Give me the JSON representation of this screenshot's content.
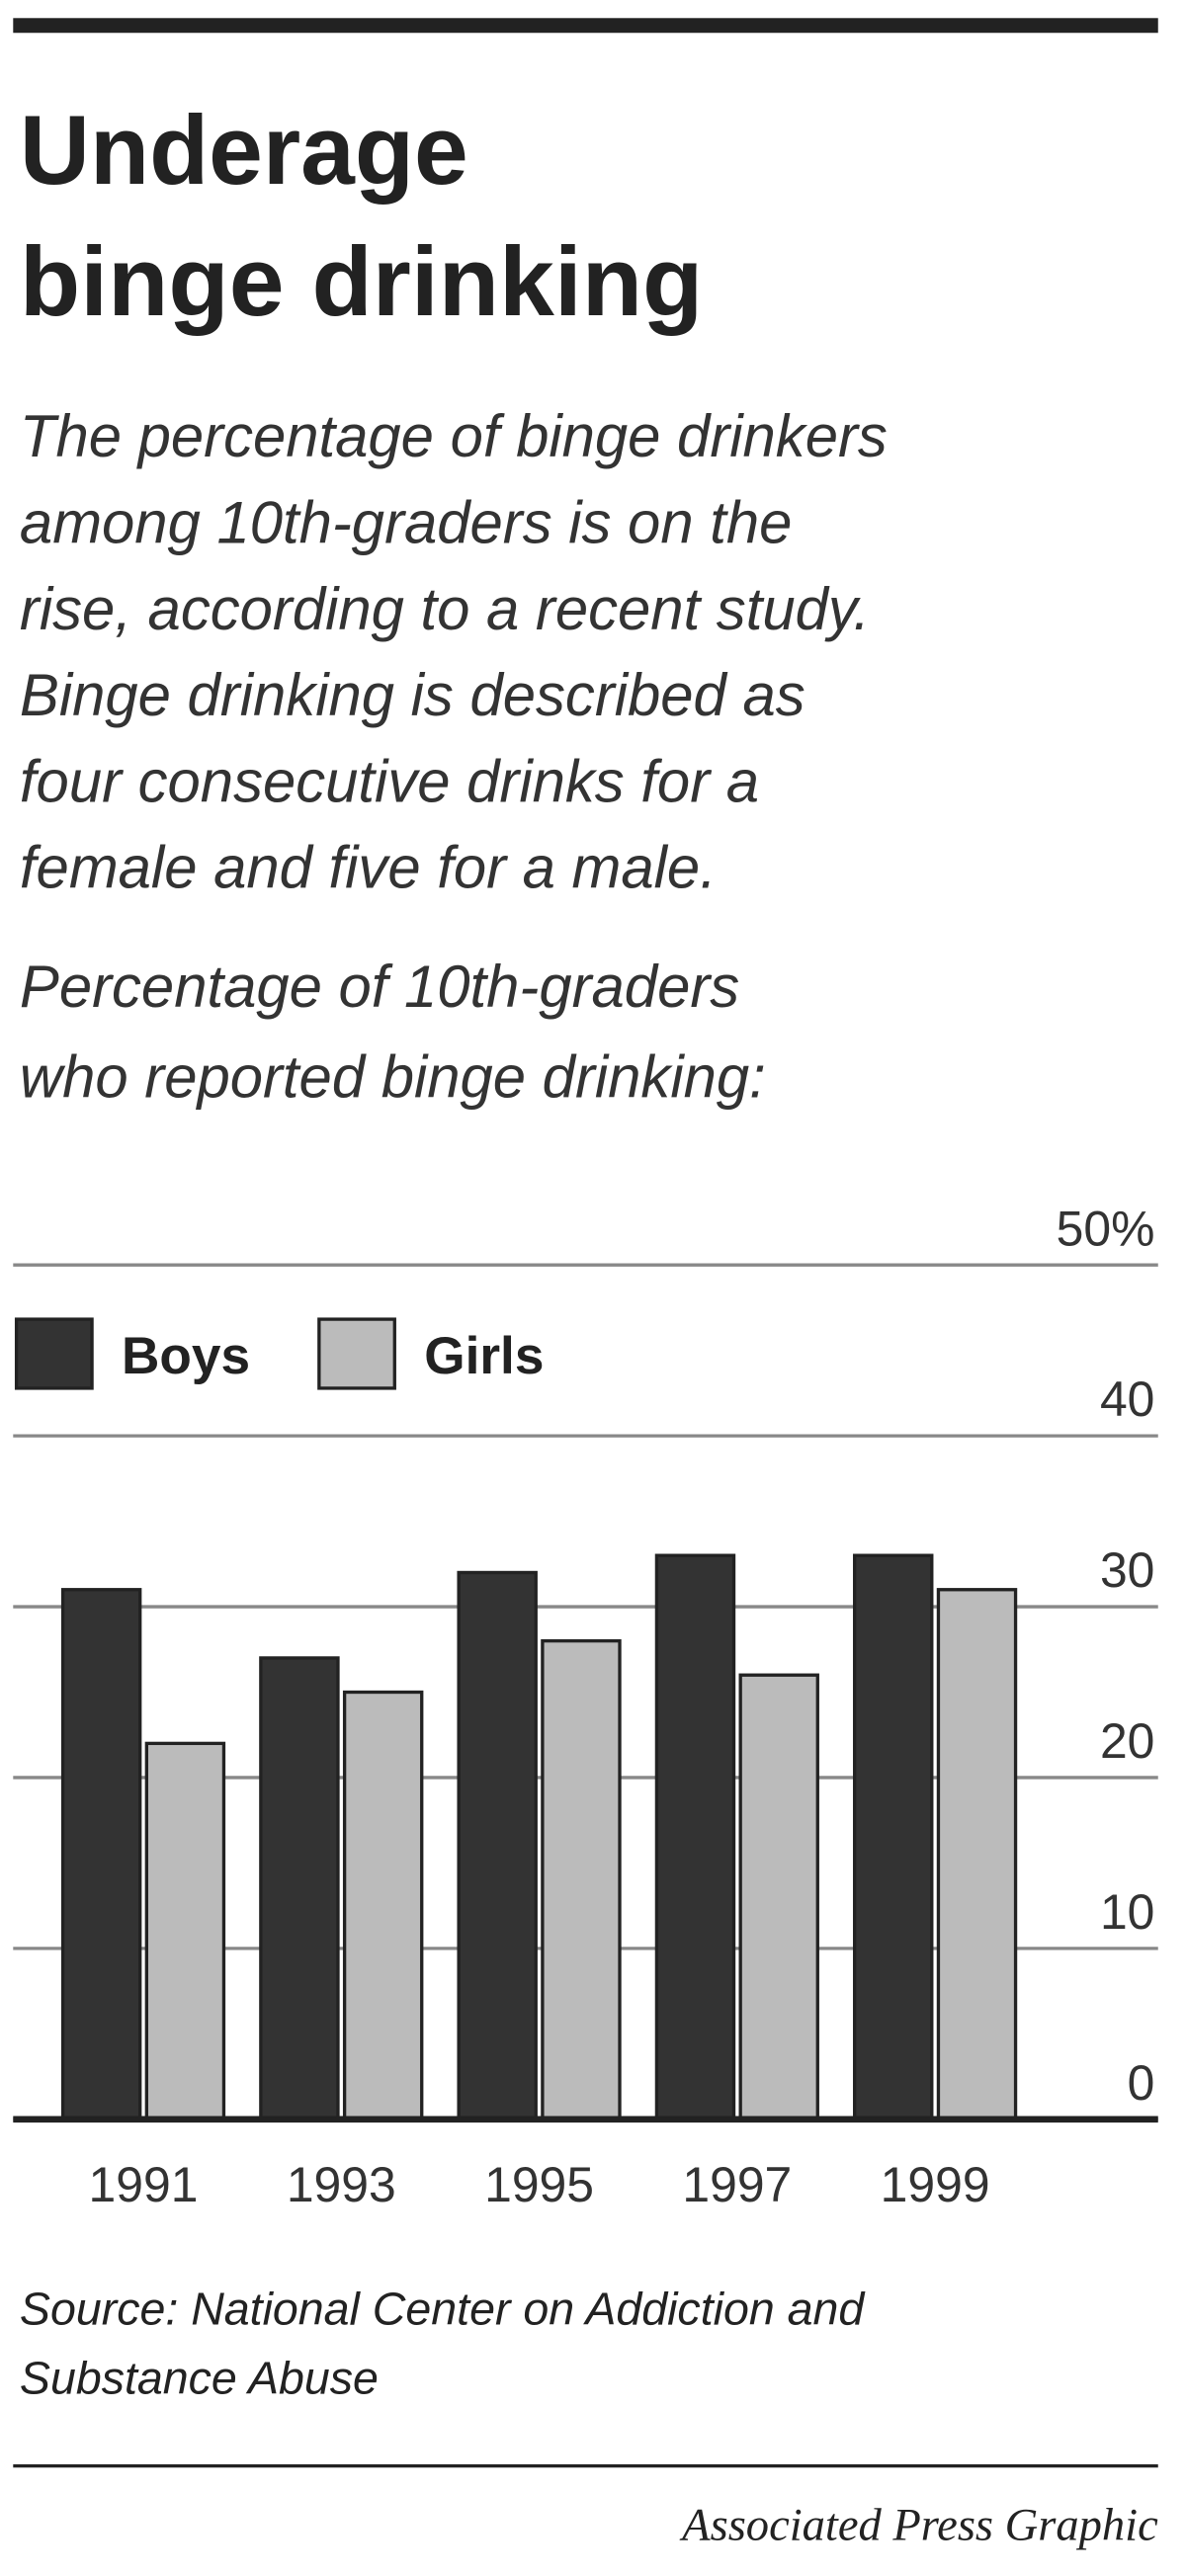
{
  "chart_data": {
    "type": "bar",
    "title": [
      "Underage",
      "binge drinking"
    ],
    "description": [
      "The percentage of binge drinkers",
      "among 10th-graders is on the",
      "rise, according to a recent study.",
      "Binge drinking is described as",
      "four consecutive drinks for a",
      "female and five for a male."
    ],
    "axis_label": [
      "Percentage of 10th-graders",
      "who reported binge drinking:"
    ],
    "categories": [
      "1991",
      "1993",
      "1995",
      "1997",
      "1999"
    ],
    "series": [
      {
        "name": "Boys",
        "color": "#333333",
        "values": [
          31,
          27,
          32,
          33,
          33
        ]
      },
      {
        "name": "Girls",
        "color": "#bbbbbb",
        "values": [
          22,
          25,
          28,
          26,
          31
        ]
      }
    ],
    "ylim": [
      0,
      50
    ],
    "yticks": [
      0,
      10,
      20,
      30,
      40,
      {
        "value": 50,
        "label": "50%"
      }
    ],
    "grid": true,
    "legend": "top-left",
    "source": [
      "Source: National Center on Addiction and",
      "Substance Abuse"
    ],
    "credit": "Associated Press Graphic"
  }
}
